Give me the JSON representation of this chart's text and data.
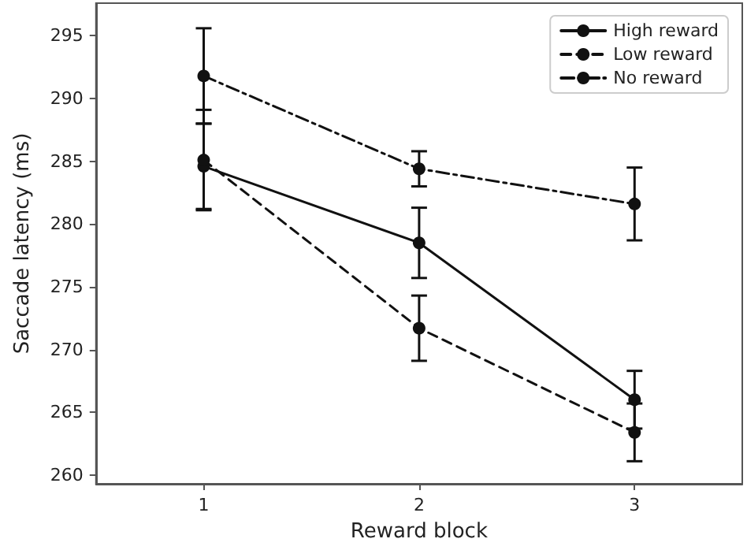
{
  "chart_data": {
    "type": "line",
    "xlabel": "Reward block",
    "ylabel": "Saccade latency (ms)",
    "x": [
      1,
      2,
      3
    ],
    "xlim": [
      0.5,
      3.5
    ],
    "xticks": [
      1,
      2,
      3
    ],
    "ylim": [
      259.3,
      297.6
    ],
    "yticks": [
      260,
      265,
      270,
      275,
      280,
      285,
      290,
      295
    ],
    "grid": false,
    "legend": "top right",
    "marker": "circle",
    "series": [
      {
        "name": "High reward",
        "color": "#111111",
        "line_style": "solid",
        "values": [
          284.6,
          278.5,
          266.0
        ],
        "errors": [
          3.4,
          2.8,
          2.3
        ]
      },
      {
        "name": "Low reward",
        "color": "#111111",
        "line_style": "dashed",
        "values": [
          285.1,
          271.7,
          263.4
        ],
        "errors": [
          4.0,
          2.6,
          2.3
        ]
      },
      {
        "name": "No reward",
        "color": "#111111",
        "line_style": "dashdot",
        "values": [
          291.8,
          284.4,
          281.6
        ],
        "errors": [
          3.8,
          1.4,
          2.9
        ]
      }
    ]
  }
}
